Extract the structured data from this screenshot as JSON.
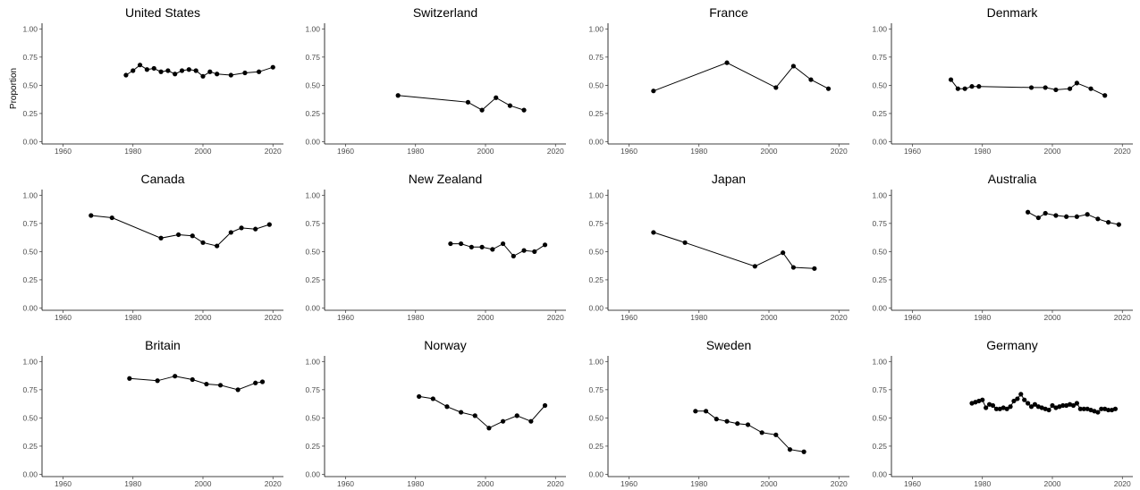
{
  "chart_data": {
    "type": "line",
    "layout": "facet-grid 3x4",
    "ylabel": "Proportion",
    "xlabel": "",
    "xlim": [
      1954,
      2023
    ],
    "ylim": [
      -0.02,
      1.05
    ],
    "x_ticks": [
      1960,
      1980,
      2000,
      2020
    ],
    "y_ticks": [
      0,
      0.25,
      0.5,
      0.75,
      1
    ],
    "y_tick_labels": [
      "0.00",
      "0.25",
      "0.50",
      "0.75",
      "1.00"
    ],
    "grid": false,
    "panels": [
      {
        "title": "United States",
        "x": [
          1978,
          1980,
          1982,
          1984,
          1986,
          1988,
          1990,
          1992,
          1994,
          1996,
          1998,
          2000,
          2002,
          2004,
          2008,
          2012,
          2016,
          2020
        ],
        "y": [
          0.59,
          0.63,
          0.68,
          0.64,
          0.65,
          0.62,
          0.63,
          0.6,
          0.63,
          0.64,
          0.63,
          0.58,
          0.62,
          0.6,
          0.59,
          0.61,
          0.62,
          0.66
        ]
      },
      {
        "title": "Switzerland",
        "x": [
          1975,
          1995,
          1999,
          2003,
          2007,
          2011
        ],
        "y": [
          0.41,
          0.35,
          0.28,
          0.39,
          0.32,
          0.28
        ]
      },
      {
        "title": "France",
        "x": [
          1967,
          1988,
          2002,
          2007,
          2012,
          2017
        ],
        "y": [
          0.45,
          0.7,
          0.48,
          0.67,
          0.55,
          0.47
        ]
      },
      {
        "title": "Denmark",
        "x": [
          1971,
          1973,
          1975,
          1977,
          1979,
          1994,
          1998,
          2001,
          2005,
          2007,
          2011,
          2015
        ],
        "y": [
          0.55,
          0.47,
          0.47,
          0.49,
          0.49,
          0.48,
          0.48,
          0.46,
          0.47,
          0.52,
          0.47,
          0.41
        ]
      },
      {
        "title": "Canada",
        "x": [
          1968,
          1974,
          1988,
          1993,
          1997,
          2000,
          2004,
          2008,
          2011,
          2015,
          2019
        ],
        "y": [
          0.82,
          0.8,
          0.62,
          0.65,
          0.64,
          0.58,
          0.55,
          0.67,
          0.71,
          0.7,
          0.74
        ]
      },
      {
        "title": "New Zealand",
        "x": [
          1990,
          1993,
          1996,
          1999,
          2002,
          2005,
          2008,
          2011,
          2014,
          2017
        ],
        "y": [
          0.57,
          0.57,
          0.54,
          0.54,
          0.52,
          0.57,
          0.46,
          0.51,
          0.5,
          0.56
        ]
      },
      {
        "title": "Japan",
        "x": [
          1967,
          1976,
          1996,
          2004,
          2007,
          2013
        ],
        "y": [
          0.67,
          0.58,
          0.37,
          0.49,
          0.36,
          0.35
        ]
      },
      {
        "title": "Australia",
        "x": [
          1993,
          1996,
          1998,
          2001,
          2004,
          2007,
          2010,
          2013,
          2016,
          2019
        ],
        "y": [
          0.85,
          0.8,
          0.84,
          0.82,
          0.81,
          0.81,
          0.83,
          0.79,
          0.76,
          0.74
        ]
      },
      {
        "title": "Britain",
        "x": [
          1979,
          1987,
          1992,
          1997,
          2001,
          2005,
          2010,
          2015,
          2017
        ],
        "y": [
          0.85,
          0.83,
          0.87,
          0.84,
          0.8,
          0.79,
          0.75,
          0.81,
          0.82
        ]
      },
      {
        "title": "Norway",
        "x": [
          1981,
          1985,
          1989,
          1993,
          1997,
          2001,
          2005,
          2009,
          2013,
          2017
        ],
        "y": [
          0.69,
          0.67,
          0.6,
          0.55,
          0.52,
          0.41,
          0.47,
          0.52,
          0.47,
          0.61
        ]
      },
      {
        "title": "Sweden",
        "x": [
          1979,
          1982,
          1985,
          1988,
          1991,
          1994,
          1998,
          2002,
          2006,
          2010
        ],
        "y": [
          0.56,
          0.56,
          0.49,
          0.47,
          0.45,
          0.44,
          0.37,
          0.35,
          0.22,
          0.2
        ]
      },
      {
        "title": "Germany",
        "x": [
          1977,
          1978,
          1979,
          1980,
          1981,
          1982,
          1983,
          1984,
          1985,
          1986,
          1987,
          1988,
          1989,
          1990,
          1991,
          1992,
          1993,
          1994,
          1995,
          1996,
          1997,
          1998,
          1999,
          2000,
          2001,
          2002,
          2003,
          2004,
          2005,
          2006,
          2007,
          2008,
          2009,
          2010,
          2011,
          2012,
          2013,
          2014,
          2015,
          2016,
          2017,
          2018
        ],
        "y": [
          0.63,
          0.64,
          0.65,
          0.66,
          0.59,
          0.62,
          0.61,
          0.58,
          0.58,
          0.59,
          0.58,
          0.6,
          0.65,
          0.67,
          0.71,
          0.66,
          0.63,
          0.6,
          0.62,
          0.6,
          0.59,
          0.58,
          0.57,
          0.61,
          0.59,
          0.6,
          0.61,
          0.61,
          0.62,
          0.61,
          0.63,
          0.58,
          0.58,
          0.58,
          0.57,
          0.56,
          0.55,
          0.58,
          0.58,
          0.57,
          0.57,
          0.58
        ]
      }
    ]
  }
}
